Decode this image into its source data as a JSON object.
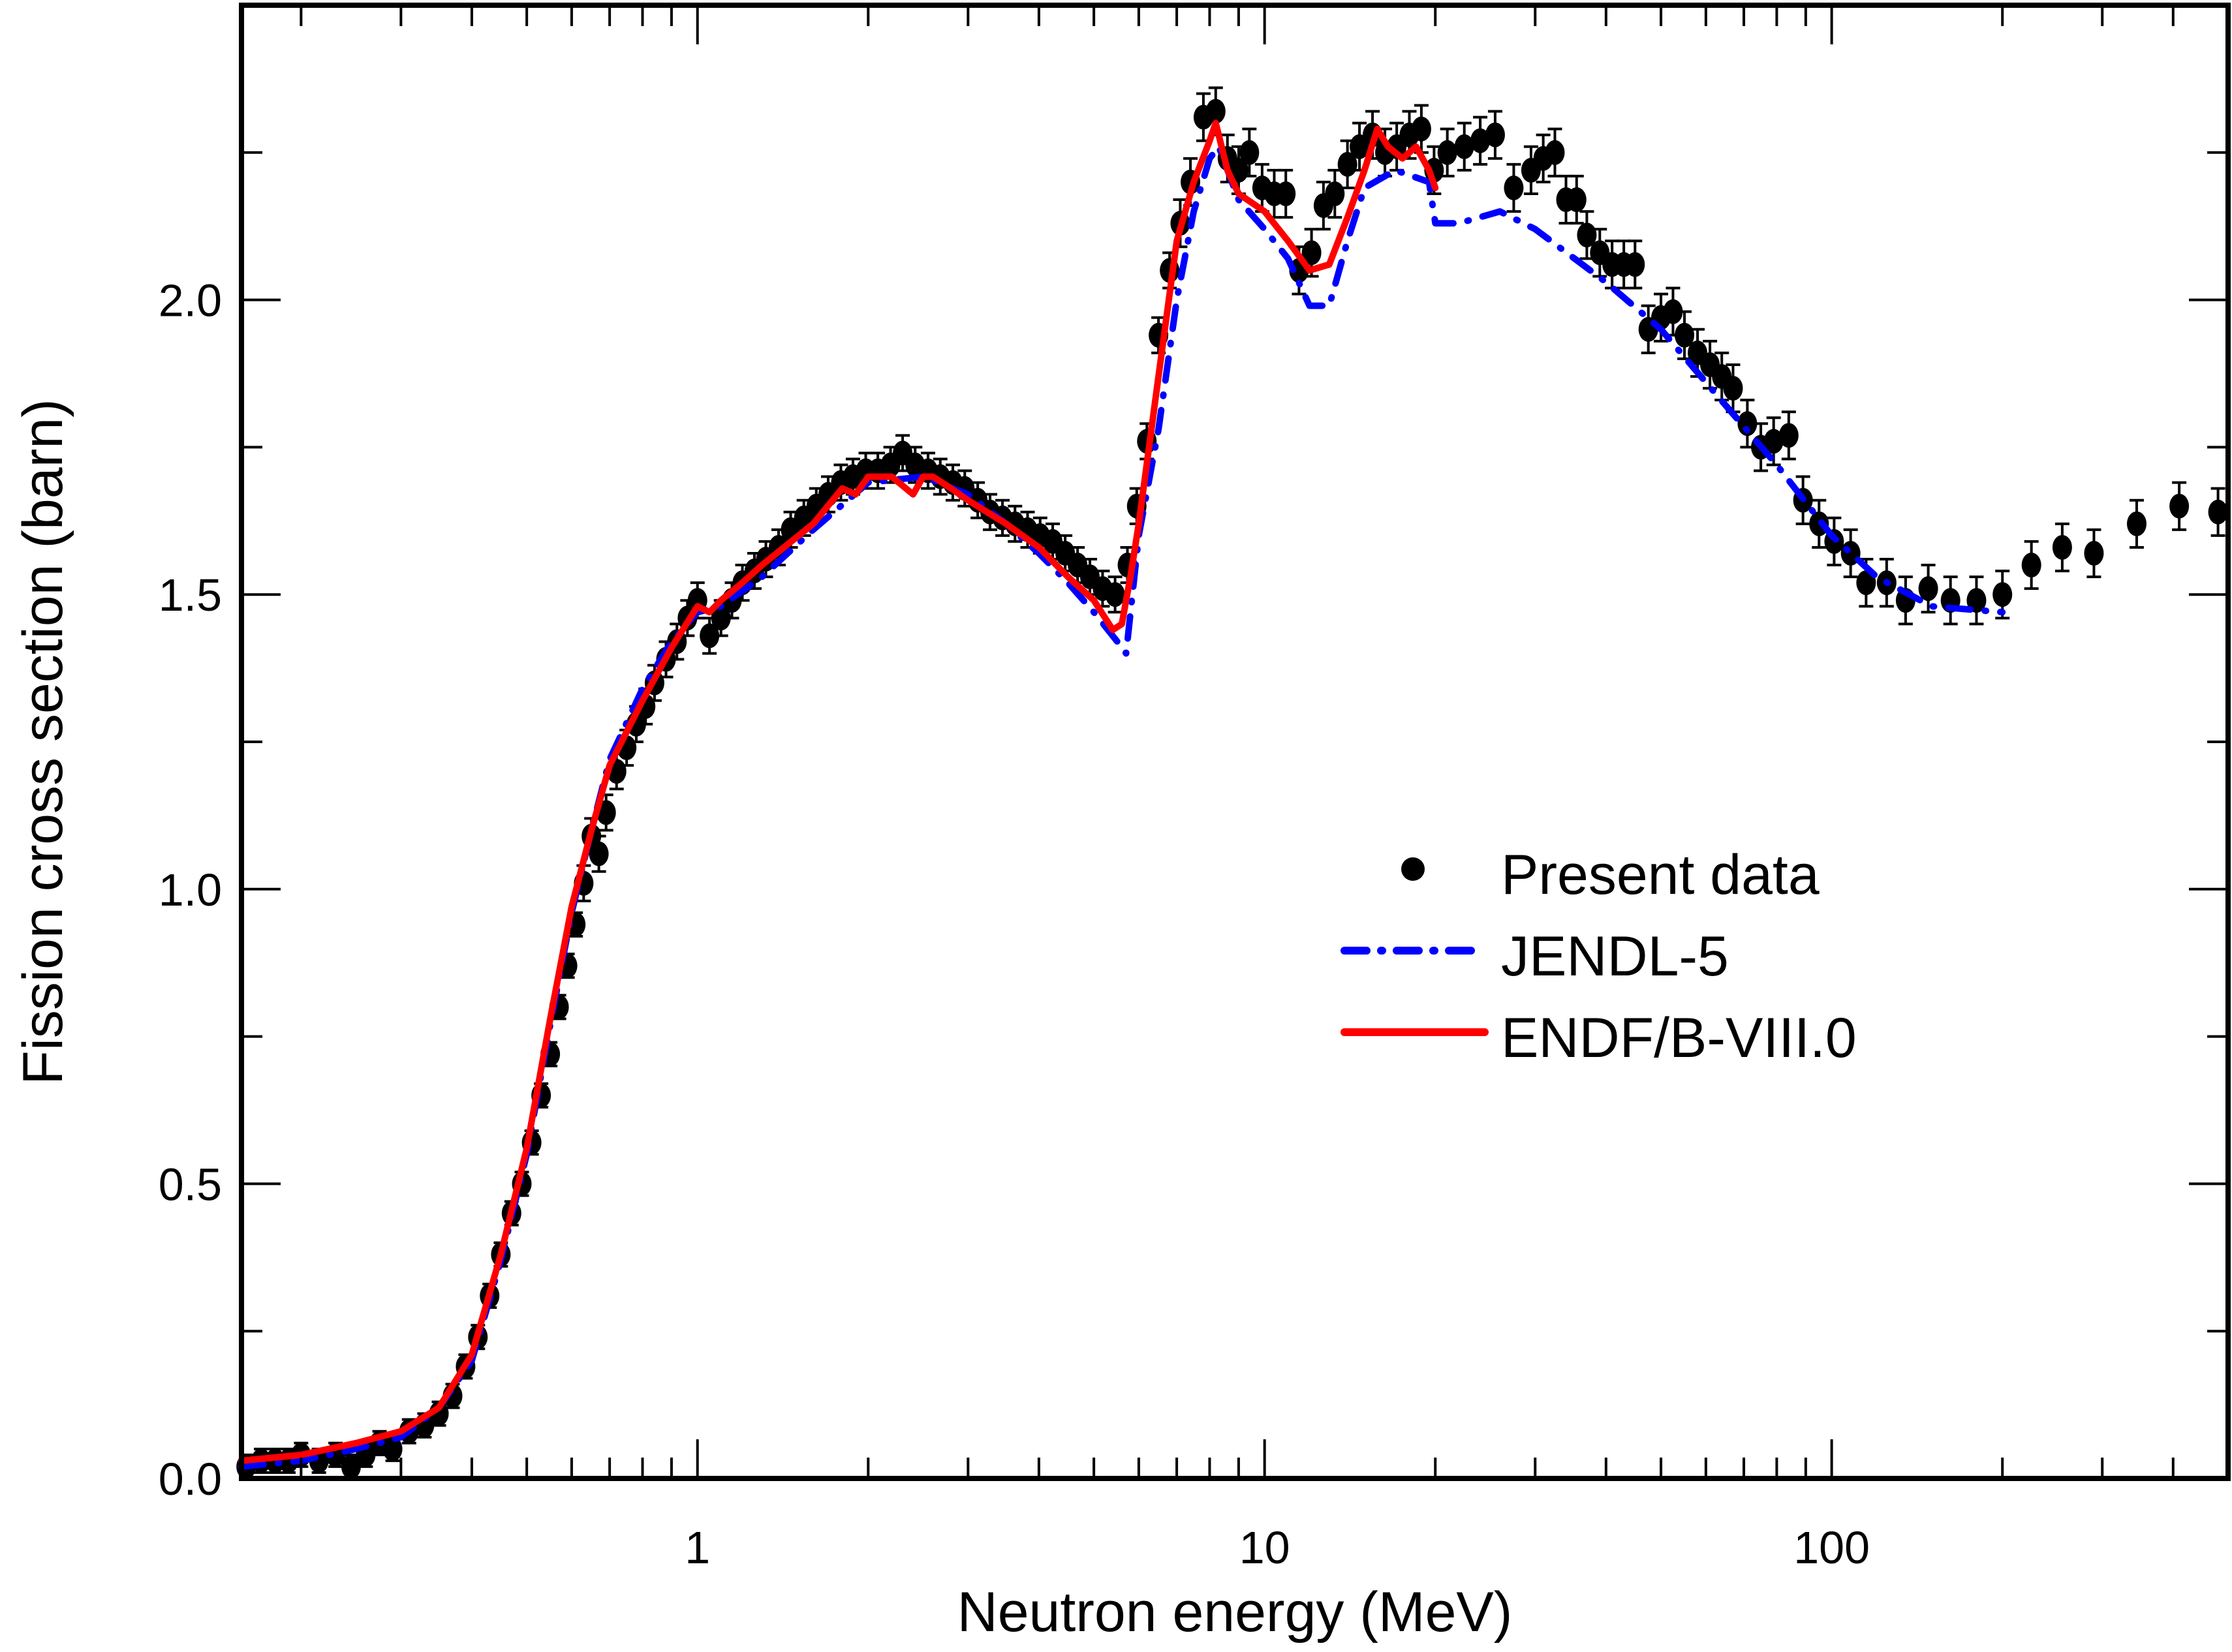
{
  "chart_data": {
    "type": "scatter",
    "title": "",
    "xlabel": "Neutron energy (MeV)",
    "ylabel": "Fission cross section (barn)",
    "xscale": "log",
    "xlim": [
      0.157,
      500
    ],
    "ylim": [
      0.0,
      2.5
    ],
    "xticks": [
      {
        "value": 1,
        "label": "1"
      },
      {
        "value": 10,
        "label": "10"
      },
      {
        "value": 100,
        "label": "100"
      }
    ],
    "yticks": [
      {
        "value": 0.0,
        "label": "0.0"
      },
      {
        "value": 0.5,
        "label": "0.5"
      },
      {
        "value": 1.0,
        "label": "1.0"
      },
      {
        "value": 1.5,
        "label": "1.5"
      },
      {
        "value": 2.0,
        "label": "2.0"
      }
    ],
    "grid": false,
    "legend": {
      "position": "center-right"
    },
    "series": [
      {
        "name": "Present data",
        "kind": "points-with-errorbars",
        "color": "#000000",
        "points": [
          [
            0.16,
            0.02,
            0.02
          ],
          [
            0.17,
            0.03,
            0.02
          ],
          [
            0.18,
            0.03,
            0.02
          ],
          [
            0.19,
            0.03,
            0.02
          ],
          [
            0.2,
            0.04,
            0.02
          ],
          [
            0.215,
            0.03,
            0.02
          ],
          [
            0.23,
            0.04,
            0.02
          ],
          [
            0.245,
            0.02,
            0.02
          ],
          [
            0.26,
            0.04,
            0.02
          ],
          [
            0.275,
            0.06,
            0.02
          ],
          [
            0.29,
            0.05,
            0.02
          ],
          [
            0.31,
            0.08,
            0.02
          ],
          [
            0.33,
            0.09,
            0.02
          ],
          [
            0.35,
            0.11,
            0.02
          ],
          [
            0.37,
            0.14,
            0.02
          ],
          [
            0.39,
            0.19,
            0.02
          ],
          [
            0.41,
            0.24,
            0.02
          ],
          [
            0.43,
            0.31,
            0.02
          ],
          [
            0.45,
            0.38,
            0.02
          ],
          [
            0.47,
            0.45,
            0.02
          ],
          [
            0.49,
            0.5,
            0.02
          ],
          [
            0.51,
            0.57,
            0.02
          ],
          [
            0.53,
            0.65,
            0.02
          ],
          [
            0.55,
            0.72,
            0.02
          ],
          [
            0.57,
            0.8,
            0.02
          ],
          [
            0.59,
            0.87,
            0.02
          ],
          [
            0.61,
            0.94,
            0.02
          ],
          [
            0.63,
            1.01,
            0.03
          ],
          [
            0.65,
            1.09,
            0.03
          ],
          [
            0.67,
            1.06,
            0.03
          ],
          [
            0.69,
            1.13,
            0.03
          ],
          [
            0.72,
            1.2,
            0.03
          ],
          [
            0.75,
            1.24,
            0.03
          ],
          [
            0.78,
            1.28,
            0.03
          ],
          [
            0.81,
            1.31,
            0.03
          ],
          [
            0.84,
            1.35,
            0.03
          ],
          [
            0.88,
            1.39,
            0.03
          ],
          [
            0.92,
            1.42,
            0.03
          ],
          [
            0.96,
            1.46,
            0.03
          ],
          [
            1.0,
            1.49,
            0.03
          ],
          [
            1.05,
            1.43,
            0.03
          ],
          [
            1.1,
            1.46,
            0.03
          ],
          [
            1.15,
            1.49,
            0.03
          ],
          [
            1.2,
            1.52,
            0.03
          ],
          [
            1.26,
            1.54,
            0.03
          ],
          [
            1.32,
            1.56,
            0.03
          ],
          [
            1.39,
            1.58,
            0.03
          ],
          [
            1.46,
            1.61,
            0.03
          ],
          [
            1.54,
            1.63,
            0.03
          ],
          [
            1.62,
            1.65,
            0.03
          ],
          [
            1.7,
            1.67,
            0.03
          ],
          [
            1.79,
            1.69,
            0.03
          ],
          [
            1.88,
            1.7,
            0.03
          ],
          [
            1.98,
            1.71,
            0.03
          ],
          [
            2.08,
            1.71,
            0.03
          ],
          [
            2.19,
            1.72,
            0.03
          ],
          [
            2.3,
            1.74,
            0.03
          ],
          [
            2.42,
            1.72,
            0.03
          ],
          [
            2.55,
            1.71,
            0.03
          ],
          [
            2.68,
            1.7,
            0.03
          ],
          [
            2.82,
            1.69,
            0.03
          ],
          [
            2.96,
            1.68,
            0.03
          ],
          [
            3.12,
            1.66,
            0.03
          ],
          [
            3.28,
            1.64,
            0.03
          ],
          [
            3.45,
            1.63,
            0.03
          ],
          [
            3.63,
            1.62,
            0.03
          ],
          [
            3.82,
            1.61,
            0.03
          ],
          [
            4.02,
            1.6,
            0.03
          ],
          [
            4.23,
            1.59,
            0.03
          ],
          [
            4.45,
            1.57,
            0.03
          ],
          [
            4.68,
            1.55,
            0.03
          ],
          [
            4.92,
            1.53,
            0.03
          ],
          [
            5.18,
            1.51,
            0.03
          ],
          [
            5.45,
            1.5,
            0.03
          ],
          [
            5.73,
            1.55,
            0.03
          ],
          [
            5.95,
            1.65,
            0.03
          ],
          [
            6.2,
            1.76,
            0.03
          ],
          [
            6.5,
            1.94,
            0.03
          ],
          [
            6.8,
            2.05,
            0.03
          ],
          [
            7.1,
            2.13,
            0.04
          ],
          [
            7.4,
            2.2,
            0.04
          ],
          [
            7.8,
            2.31,
            0.04
          ],
          [
            8.2,
            2.32,
            0.04
          ],
          [
            8.6,
            2.24,
            0.04
          ],
          [
            9.0,
            2.22,
            0.04
          ],
          [
            9.4,
            2.25,
            0.04
          ],
          [
            9.9,
            2.19,
            0.04
          ],
          [
            10.4,
            2.18,
            0.04
          ],
          [
            10.9,
            2.18,
            0.04
          ],
          [
            11.5,
            2.05,
            0.04
          ],
          [
            12.1,
            2.08,
            0.04
          ],
          [
            12.7,
            2.16,
            0.04
          ],
          [
            13.3,
            2.18,
            0.04
          ],
          [
            14.0,
            2.23,
            0.04
          ],
          [
            14.7,
            2.26,
            0.04
          ],
          [
            15.5,
            2.28,
            0.04
          ],
          [
            16.3,
            2.25,
            0.04
          ],
          [
            17.1,
            2.26,
            0.04
          ],
          [
            18.0,
            2.28,
            0.04
          ],
          [
            18.9,
            2.29,
            0.04
          ],
          [
            19.9,
            2.22,
            0.04
          ],
          [
            21.0,
            2.25,
            0.04
          ],
          [
            22.5,
            2.26,
            0.04
          ],
          [
            24.0,
            2.27,
            0.04
          ],
          [
            25.5,
            2.28,
            0.04
          ],
          [
            27.5,
            2.19,
            0.04
          ],
          [
            29.5,
            2.22,
            0.04
          ],
          [
            31.0,
            2.24,
            0.04
          ],
          [
            32.5,
            2.25,
            0.04
          ],
          [
            34.0,
            2.17,
            0.04
          ],
          [
            35.5,
            2.17,
            0.04
          ],
          [
            37.0,
            2.11,
            0.04
          ],
          [
            39.0,
            2.08,
            0.04
          ],
          [
            41.0,
            2.06,
            0.04
          ],
          [
            43.0,
            2.06,
            0.04
          ],
          [
            45.0,
            2.06,
            0.04
          ],
          [
            47.5,
            1.95,
            0.04
          ],
          [
            50.0,
            1.97,
            0.04
          ],
          [
            52.5,
            1.98,
            0.04
          ],
          [
            55.0,
            1.94,
            0.04
          ],
          [
            58.0,
            1.91,
            0.04
          ],
          [
            61.0,
            1.89,
            0.04
          ],
          [
            64.0,
            1.87,
            0.04
          ],
          [
            67.0,
            1.85,
            0.04
          ],
          [
            71.0,
            1.79,
            0.04
          ],
          [
            75.0,
            1.75,
            0.04
          ],
          [
            79.0,
            1.76,
            0.04
          ],
          [
            84.0,
            1.77,
            0.04
          ],
          [
            89.0,
            1.66,
            0.04
          ],
          [
            95.0,
            1.62,
            0.04
          ],
          [
            101.0,
            1.59,
            0.04
          ],
          [
            108.0,
            1.57,
            0.04
          ],
          [
            115.0,
            1.52,
            0.04
          ],
          [
            125.0,
            1.52,
            0.04
          ],
          [
            135.0,
            1.49,
            0.04
          ],
          [
            148.0,
            1.51,
            0.04
          ],
          [
            162.0,
            1.49,
            0.04
          ],
          [
            180.0,
            1.49,
            0.04
          ],
          [
            200.0,
            1.5,
            0.04
          ],
          [
            225.0,
            1.55,
            0.04
          ],
          [
            255.0,
            1.58,
            0.04
          ],
          [
            290.0,
            1.57,
            0.04
          ],
          [
            345.0,
            1.62,
            0.04
          ],
          [
            410.0,
            1.65,
            0.04
          ],
          [
            480.0,
            1.64,
            0.04
          ]
        ]
      },
      {
        "name": "JENDL-5",
        "kind": "line",
        "style": "dash-dot",
        "color": "#0000FF",
        "x": [
          0.157,
          0.2,
          0.25,
          0.3,
          0.35,
          0.4,
          0.45,
          0.5,
          0.55,
          0.6,
          0.65,
          0.7,
          0.8,
          0.9,
          1.0,
          1.1,
          1.3,
          1.6,
          2.0,
          2.5,
          3.0,
          3.5,
          4.0,
          4.5,
          5.0,
          5.5,
          5.7,
          6.0,
          6.5,
          7.0,
          7.5,
          8.0,
          8.3,
          9.0,
          10.0,
          11.0,
          12.0,
          13.0,
          14.0,
          15.0,
          17.0,
          19.5,
          20.0,
          22.0,
          26.0,
          30.0,
          40.0,
          50.0,
          60.0,
          80.0,
          100.0,
          120.0,
          150.0,
          200.0
        ],
        "y": [
          0.02,
          0.03,
          0.05,
          0.07,
          0.12,
          0.2,
          0.37,
          0.55,
          0.77,
          0.96,
          1.1,
          1.22,
          1.34,
          1.42,
          1.47,
          1.48,
          1.53,
          1.61,
          1.69,
          1.7,
          1.67,
          1.62,
          1.57,
          1.52,
          1.47,
          1.42,
          1.4,
          1.6,
          1.78,
          2.0,
          2.15,
          2.24,
          2.26,
          2.17,
          2.12,
          2.07,
          1.99,
          1.99,
          2.1,
          2.19,
          2.22,
          2.2,
          2.13,
          2.13,
          2.15,
          2.12,
          2.03,
          1.95,
          1.86,
          1.72,
          1.6,
          1.53,
          1.48,
          1.47
        ]
      },
      {
        "name": "ENDF/B-VIII.0",
        "kind": "line",
        "style": "solid",
        "color": "#FF0000",
        "x": [
          0.157,
          0.2,
          0.25,
          0.3,
          0.35,
          0.4,
          0.45,
          0.5,
          0.55,
          0.6,
          0.65,
          0.7,
          0.8,
          0.9,
          1.0,
          1.05,
          1.1,
          1.2,
          1.3,
          1.6,
          1.8,
          1.9,
          2.0,
          2.2,
          2.4,
          2.5,
          2.6,
          2.8,
          3.0,
          3.5,
          4.0,
          4.5,
          5.0,
          5.4,
          5.6,
          5.8,
          6.0,
          6.5,
          7.0,
          7.5,
          8.0,
          8.2,
          8.6,
          9.0,
          10.0,
          11.0,
          12.0,
          13.0,
          14.0,
          15.0,
          15.8,
          16.5,
          17.5,
          18.5,
          19.5,
          20.0
        ],
        "y": [
          0.03,
          0.04,
          0.06,
          0.08,
          0.12,
          0.21,
          0.38,
          0.56,
          0.78,
          0.97,
          1.1,
          1.21,
          1.32,
          1.41,
          1.48,
          1.47,
          1.49,
          1.52,
          1.55,
          1.62,
          1.68,
          1.67,
          1.7,
          1.7,
          1.67,
          1.7,
          1.7,
          1.68,
          1.66,
          1.62,
          1.58,
          1.53,
          1.49,
          1.44,
          1.45,
          1.53,
          1.62,
          1.87,
          2.1,
          2.2,
          2.27,
          2.3,
          2.22,
          2.18,
          2.15,
          2.1,
          2.05,
          2.06,
          2.14,
          2.22,
          2.29,
          2.26,
          2.24,
          2.26,
          2.22,
          2.19
        ]
      }
    ]
  }
}
